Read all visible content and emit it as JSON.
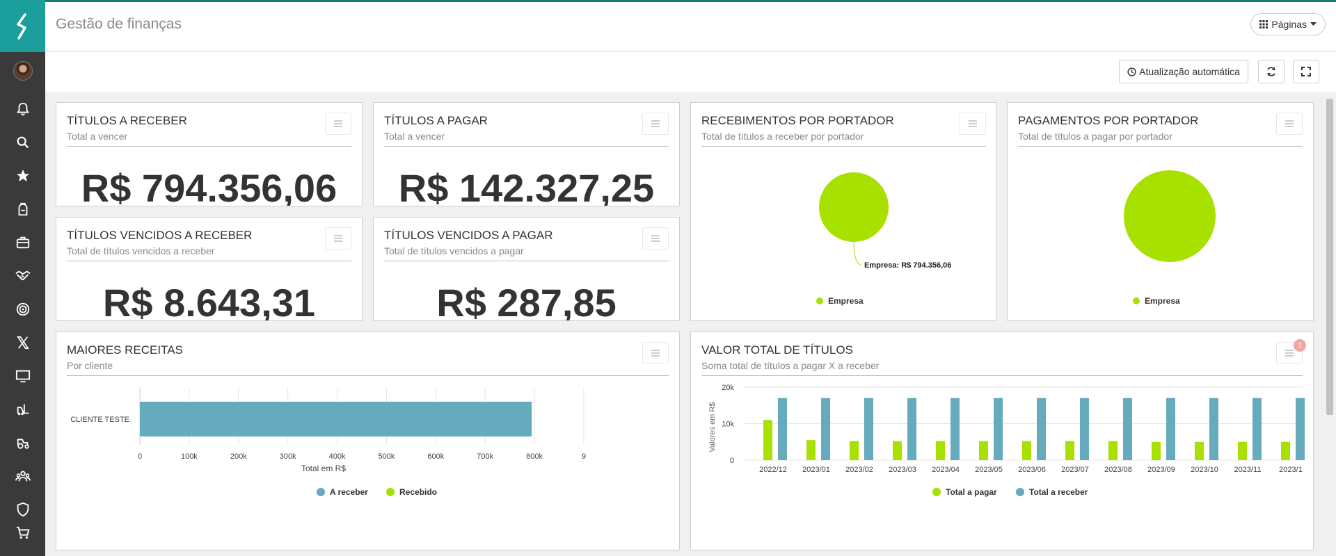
{
  "app": {
    "title": "Gestão de finanças",
    "pages_label": "Páginas"
  },
  "toolbar": {
    "auto_update_label": "Atualização automática"
  },
  "sidebar": {
    "icons": [
      "bell-icon",
      "search-icon",
      "star-icon",
      "backpack-icon",
      "briefcase-icon",
      "handshake-icon",
      "target-icon",
      "x-icon",
      "monitor-icon",
      "forklift-icon",
      "tractor-icon",
      "group-icon",
      "shield-icon",
      "cart-icon"
    ]
  },
  "panels": {
    "receber": {
      "title": "TÍTULOS A RECEBER",
      "subtitle": "Total a vencer",
      "value": "R$ 794.356,06"
    },
    "pagar": {
      "title": "TÍTULOS A PAGAR",
      "subtitle": "Total a vencer",
      "value": "R$ 142.327,25"
    },
    "vencidos_receber": {
      "title": "TÍTULOS VENCIDOS A RECEBER",
      "subtitle": "Total de títulos vencidos a receber",
      "value": "R$ 8.643,31"
    },
    "vencidos_pagar": {
      "title": "TÍTULOS VENCIDOS A PAGAR",
      "subtitle": "Total de títulos vencidos a pagar",
      "value": "R$ 287,85"
    },
    "recebimentos": {
      "title": "RECEBIMENTOS POR PORTADOR",
      "subtitle": "Total de títulos a receber por portador"
    },
    "pagamentos": {
      "title": "PAGAMENTOS POR PORTADOR",
      "subtitle": "Total de títulos a pagar por portador"
    },
    "maiores": {
      "title": "MAIORES RECEITAS",
      "subtitle": "Por cliente"
    },
    "valor_total": {
      "title": "VALOR TOTAL DE TÍTULOS",
      "subtitle": "Soma total de títulos a pagar X a receber",
      "badge": "1"
    }
  },
  "chart_data": [
    {
      "type": "pie",
      "categories": [
        "Empresa"
      ],
      "values": [
        794356.06
      ],
      "data_label": "Empresa: R$ 794.356,06",
      "legend": "bottom",
      "colors": [
        "#a8e000"
      ]
    },
    {
      "type": "pie",
      "categories": [
        "Empresa"
      ],
      "values": [
        142327.25
      ],
      "legend": "bottom",
      "colors": [
        "#a8e000"
      ]
    },
    {
      "type": "bar",
      "orientation": "horizontal",
      "categories": [
        "CLIENTE TESTE"
      ],
      "series": [
        {
          "name": "A receber",
          "values": [
            794356.06
          ],
          "color": "#66aabd"
        },
        {
          "name": "Recebido",
          "values": [
            0
          ],
          "color": "#a8e000"
        }
      ],
      "xlabel": "Total em R$",
      "xlim": [
        0,
        900000
      ],
      "ticks": [
        "0",
        "100k",
        "200k",
        "300k",
        "400k",
        "500k",
        "600k",
        "700k",
        "800k",
        "9"
      ],
      "legend": "bottom",
      "grid": true
    },
    {
      "type": "bar",
      "categories": [
        "2022/12",
        "2023/01",
        "2023/02",
        "2023/03",
        "2023/04",
        "2023/05",
        "2023/06",
        "2023/07",
        "2023/08",
        "2023/09",
        "2023/10",
        "2023/11",
        "2023/1"
      ],
      "series": [
        {
          "name": "Total a pagar",
          "values": [
            11000,
            5500,
            5200,
            5200,
            5200,
            5200,
            5200,
            5200,
            5200,
            5000,
            5000,
            5000,
            5000
          ],
          "color": "#a8e000"
        },
        {
          "name": "Total a receber",
          "values": [
            17000,
            17000,
            17000,
            17000,
            17000,
            17000,
            17000,
            17000,
            17000,
            17000,
            17000,
            17000,
            17000
          ],
          "color": "#66aabd"
        }
      ],
      "ylabel": "Valores em R$",
      "ylim": [
        0,
        20000
      ],
      "yticks": [
        "0",
        "10k",
        "20k"
      ],
      "legend": "bottom",
      "grid": true
    }
  ]
}
